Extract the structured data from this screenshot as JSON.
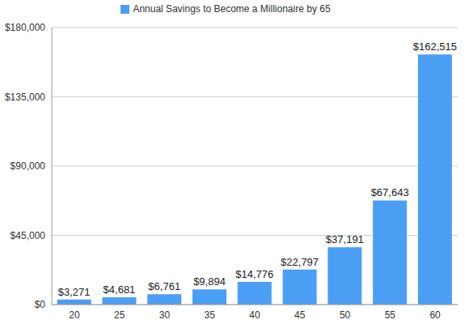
{
  "chart_data": {
    "type": "bar",
    "categories": [
      "20",
      "25",
      "30",
      "35",
      "40",
      "45",
      "50",
      "55",
      "60"
    ],
    "series": [
      {
        "name": "Annual Savings to Become a Millionaire by 65",
        "color": "#4a9ff5",
        "values": [
          3271,
          4681,
          6761,
          9894,
          14776,
          22797,
          37191,
          67643,
          162515
        ],
        "value_labels": [
          "$3,271",
          "$4,681",
          "$6,761",
          "$9,894",
          "$14,776",
          "$22,797",
          "$37,191",
          "$67,643",
          "$162,515"
        ]
      }
    ],
    "ylim": [
      0,
      180000
    ],
    "yticks": [
      {
        "value": 0,
        "label": "$0"
      },
      {
        "value": 45000,
        "label": "$45,000"
      },
      {
        "value": 90000,
        "label": "$90,000"
      },
      {
        "value": 135000,
        "label": "$135,000"
      },
      {
        "value": 180000,
        "label": "$180,000"
      }
    ],
    "grid": true,
    "legend": "top",
    "data_labels": true
  }
}
